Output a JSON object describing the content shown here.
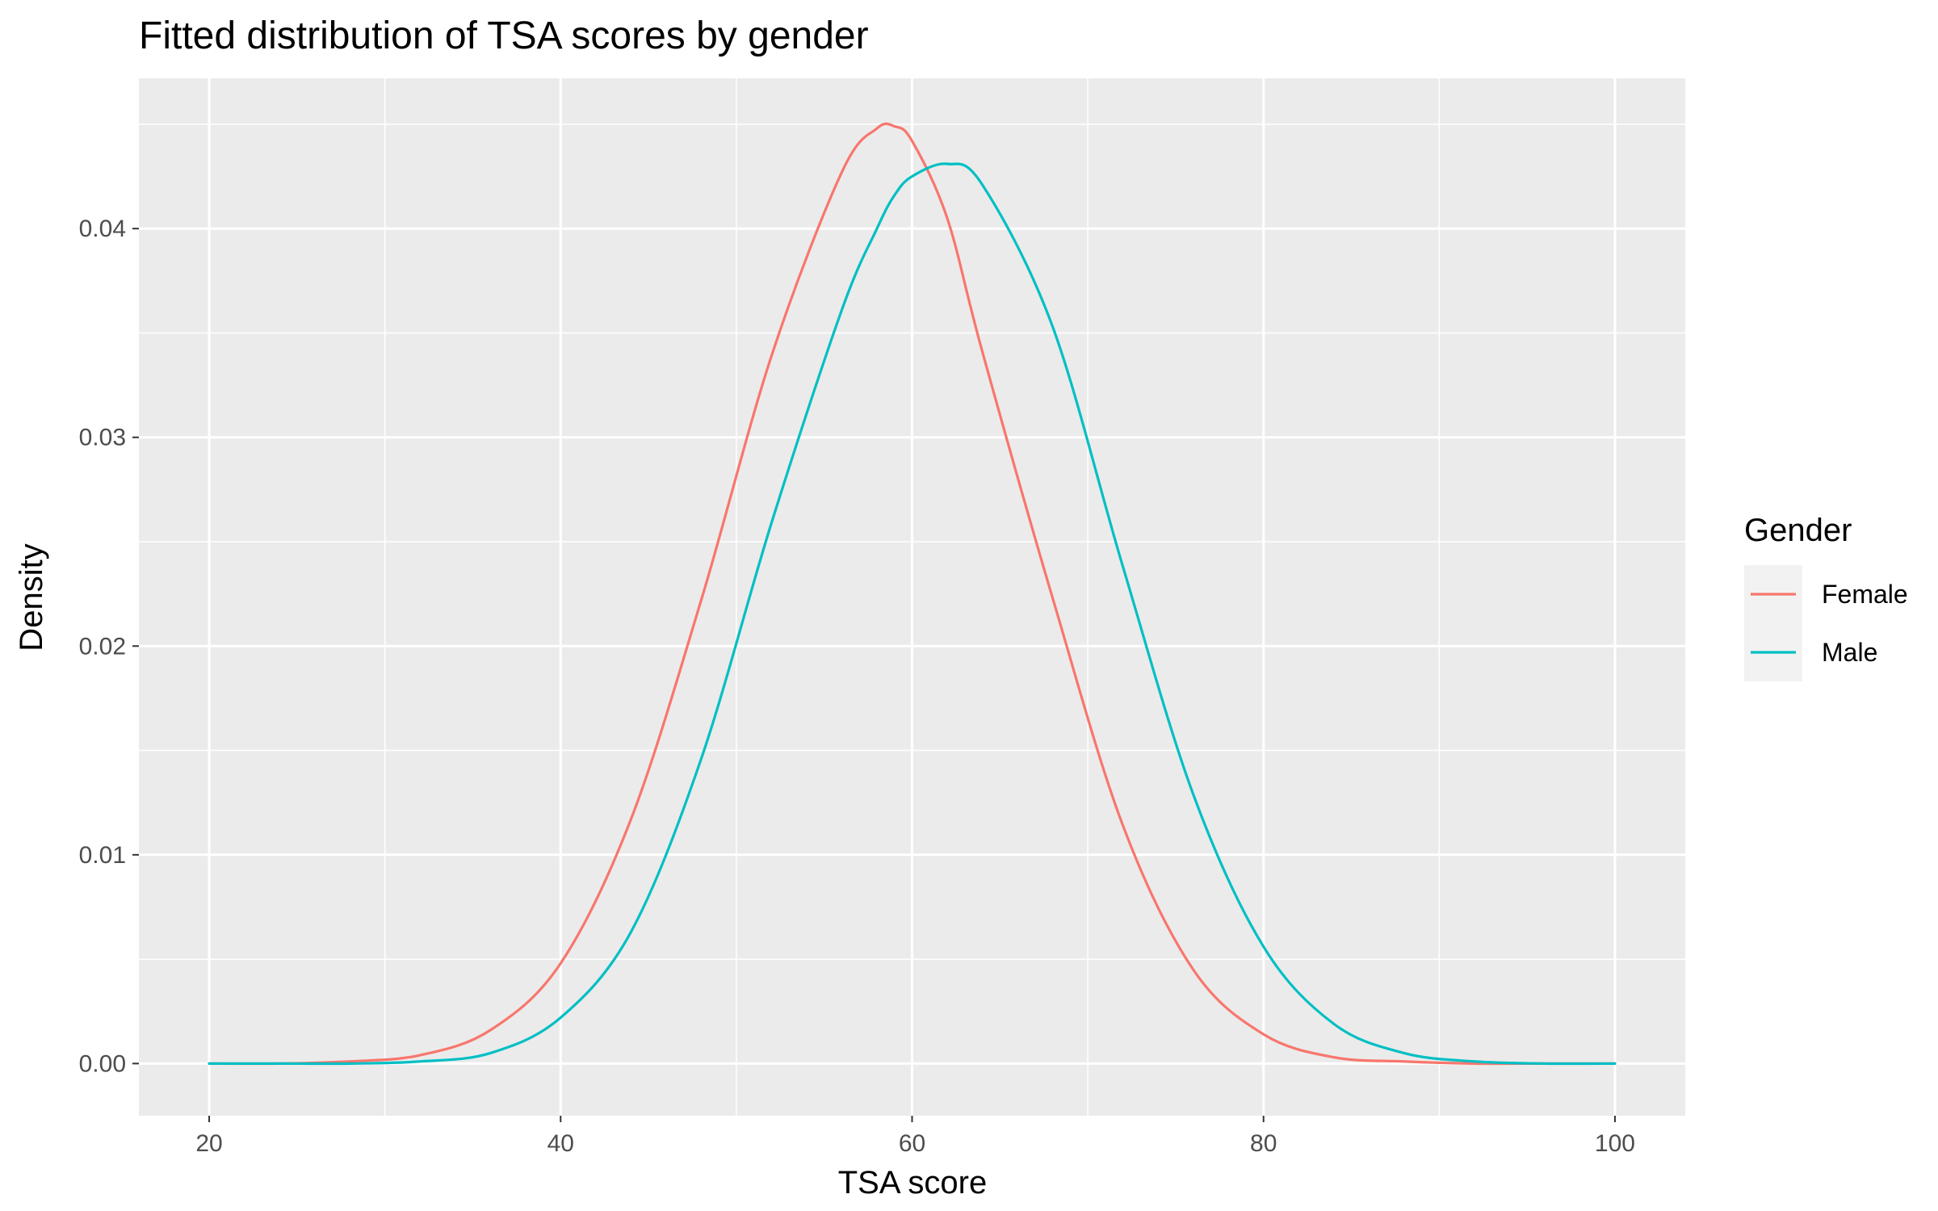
{
  "chart_data": {
    "type": "line",
    "title": "Fitted distribution of TSA scores by gender",
    "xlabel": "TSA score",
    "ylabel": "Density",
    "xlim": [
      16,
      104
    ],
    "ylim": [
      -0.0025,
      0.0472
    ],
    "x_ticks": [
      20,
      40,
      60,
      80,
      100
    ],
    "x_tick_labels": [
      "20",
      "40",
      "60",
      "80",
      "100"
    ],
    "y_ticks": [
      0,
      0.01,
      0.02,
      0.03,
      0.04
    ],
    "y_tick_labels": [
      "0.00",
      "0.01",
      "0.02",
      "0.03",
      "0.04"
    ],
    "grid": true,
    "legend": {
      "title": "Gender",
      "position": "right"
    },
    "x": [
      20,
      24,
      28,
      32,
      36,
      40,
      44,
      48,
      52,
      56,
      58,
      59,
      60,
      62,
      64,
      68,
      72,
      76,
      80,
      84,
      88,
      92,
      96,
      100
    ],
    "series": [
      {
        "name": "Female",
        "color": "#F8766D",
        "values": [
          0.0,
          0.0,
          0.0001,
          0.0004,
          0.0016,
          0.0048,
          0.0117,
          0.0222,
          0.0339,
          0.0427,
          0.0448,
          0.0449,
          0.0442,
          0.0405,
          0.0341,
          0.0223,
          0.0114,
          0.0045,
          0.0014,
          0.0003,
          0.0001,
          0.0,
          0.0,
          0.0
        ]
      },
      {
        "name": "Male",
        "color": "#00BFC4",
        "values": [
          0.0,
          0.0,
          0.0,
          0.0001,
          0.0005,
          0.0022,
          0.0063,
          0.0146,
          0.0259,
          0.0361,
          0.04,
          0.0416,
          0.0425,
          0.0431,
          0.0421,
          0.0353,
          0.0238,
          0.0129,
          0.0056,
          0.0019,
          0.0005,
          0.0001,
          0.0,
          0.0
        ]
      }
    ]
  }
}
